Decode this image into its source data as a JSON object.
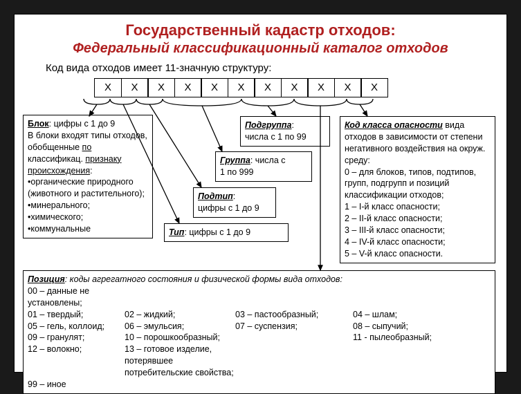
{
  "title": {
    "text": "Государственный кадастр отходов:",
    "color": "#b02020",
    "fontsize": 22
  },
  "subtitle": {
    "text": "Федеральный классификационный каталог отходов",
    "color": "#b02020",
    "fontsize": 20
  },
  "intro": "Код вида отходов имеет 11-значную структуру:",
  "code_cells": [
    "X",
    "X",
    "X",
    "X",
    "X",
    "X",
    "X",
    "X",
    "X",
    "X",
    "X"
  ],
  "blok": {
    "heading": "Блок",
    "line1": ": цифры с 1 до 9",
    "line2": "В блоки входят типы отходов, обобщенные ",
    "line3_u1": "по",
    "line3_mid": " классификац. ",
    "line3_u2": "признаку происхождения",
    "line3_end": ":",
    "items": [
      "органические природного (животного и растительного);",
      "минерального;",
      "химического;",
      "коммунальные"
    ]
  },
  "tip": {
    "label": "Тип",
    "text": ": цифры с 1 до 9"
  },
  "podtip": {
    "label": "Подтип",
    "text": ":\nцифры с 1 до 9"
  },
  "gruppa": {
    "label": "Группа",
    "text": ": числа с\n1 по 999"
  },
  "podgruppa": {
    "label": "Подгруппа",
    "text": ":\nчисла с 1 по 99"
  },
  "kod": {
    "label": "Код класса опасности",
    "lead": " вида отходов в зависимости от степени негативного воздействия на окруж. среду:",
    "items": [
      "0 – для блоков, типов, подтипов, групп, подгрупп и позиций классификации отходов;",
      "1 – I-й класс опасности;",
      "2 – II-й класс опасности;",
      "3 – III-й класс опасности;",
      "4 – IV-й класс опасности;",
      "5 – V-й класс опасности."
    ]
  },
  "poz": {
    "label": "Позиция",
    "lead": ": коды агрегатного состояния и физической формы вида отходов:",
    "rows": [
      [
        "00 – данные не установлены;"
      ],
      [
        "01 – твердый;",
        "02 – жидкий;",
        "03 – пастообразный;",
        "04 – шлам;"
      ],
      [
        "05 – гель, коллоид;",
        "06 – эмульсия;",
        "07 – суспензия;",
        "08 – сыпучий;"
      ],
      [
        "09 – гранулят;",
        "10 – порошкообразный;",
        "",
        "11 - пылеобразный;"
      ],
      [
        "12 – волокно;",
        "13 – готовое изделие, потерявшее потребительские свойства;"
      ],
      [
        "99 – иное"
      ]
    ],
    "col_widths": [
      "140px",
      "160px",
      "170px",
      "160px"
    ]
  },
  "colors": {
    "text": "#000000",
    "border": "#000000",
    "bg": "#ffffff"
  }
}
